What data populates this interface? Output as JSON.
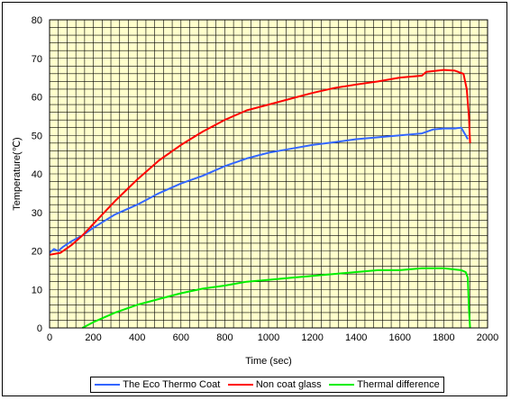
{
  "chart_data": {
    "type": "line",
    "title": "",
    "xlabel": "Time (sec)",
    "ylabel": "Temperature(℃)",
    "xlim": [
      0,
      2000
    ],
    "ylim": [
      0,
      80
    ],
    "x_ticks": [
      0,
      200,
      400,
      600,
      800,
      1000,
      1200,
      1400,
      1600,
      1800,
      2000
    ],
    "y_ticks": [
      0,
      10,
      20,
      30,
      40,
      50,
      60,
      70,
      80
    ],
    "grid": true,
    "plot_background": "#ffffcc",
    "legend_position": "bottom",
    "series": [
      {
        "name": "The Eco Thermo Coat",
        "color": "#3366ff",
        "points": [
          [
            0,
            19.5
          ],
          [
            20,
            20.5
          ],
          [
            40,
            20
          ],
          [
            60,
            21
          ],
          [
            100,
            22.5
          ],
          [
            150,
            24
          ],
          [
            200,
            26
          ],
          [
            300,
            29.5
          ],
          [
            400,
            32
          ],
          [
            500,
            35
          ],
          [
            600,
            37.5
          ],
          [
            700,
            39.5
          ],
          [
            800,
            42
          ],
          [
            900,
            44
          ],
          [
            1000,
            45.5
          ],
          [
            1100,
            46.5
          ],
          [
            1200,
            47.5
          ],
          [
            1300,
            48.2
          ],
          [
            1400,
            49
          ],
          [
            1500,
            49.5
          ],
          [
            1600,
            50
          ],
          [
            1700,
            50.5
          ],
          [
            1750,
            51.5
          ],
          [
            1800,
            51.8
          ],
          [
            1850,
            51.8
          ],
          [
            1880,
            52
          ],
          [
            1900,
            50
          ],
          [
            1910,
            49
          ]
        ]
      },
      {
        "name": "Non coat glass",
        "color": "#ff0000",
        "points": [
          [
            0,
            19
          ],
          [
            50,
            19.5
          ],
          [
            100,
            21.5
          ],
          [
            150,
            24
          ],
          [
            200,
            27
          ],
          [
            300,
            33
          ],
          [
            400,
            38.5
          ],
          [
            500,
            43.5
          ],
          [
            600,
            47.5
          ],
          [
            700,
            51
          ],
          [
            800,
            54
          ],
          [
            900,
            56.5
          ],
          [
            1000,
            58
          ],
          [
            1100,
            59.5
          ],
          [
            1200,
            61
          ],
          [
            1300,
            62.3
          ],
          [
            1400,
            63.2
          ],
          [
            1500,
            64
          ],
          [
            1600,
            65
          ],
          [
            1700,
            65.5
          ],
          [
            1720,
            66.5
          ],
          [
            1800,
            67
          ],
          [
            1850,
            66.8
          ],
          [
            1890,
            66
          ],
          [
            1905,
            62
          ],
          [
            1915,
            55
          ],
          [
            1920,
            48
          ]
        ]
      },
      {
        "name": "Thermal difference",
        "color": "#00ee00",
        "points": [
          [
            150,
            0
          ],
          [
            200,
            1.5
          ],
          [
            300,
            4
          ],
          [
            400,
            6
          ],
          [
            500,
            7.5
          ],
          [
            600,
            9
          ],
          [
            700,
            10.2
          ],
          [
            800,
            11
          ],
          [
            900,
            12
          ],
          [
            1000,
            12.5
          ],
          [
            1100,
            13
          ],
          [
            1200,
            13.5
          ],
          [
            1300,
            14
          ],
          [
            1400,
            14.5
          ],
          [
            1500,
            15
          ],
          [
            1600,
            15
          ],
          [
            1700,
            15.5
          ],
          [
            1800,
            15.5
          ],
          [
            1880,
            15
          ],
          [
            1900,
            14.5
          ],
          [
            1910,
            13
          ],
          [
            1915,
            5
          ],
          [
            1920,
            0
          ]
        ]
      }
    ]
  }
}
